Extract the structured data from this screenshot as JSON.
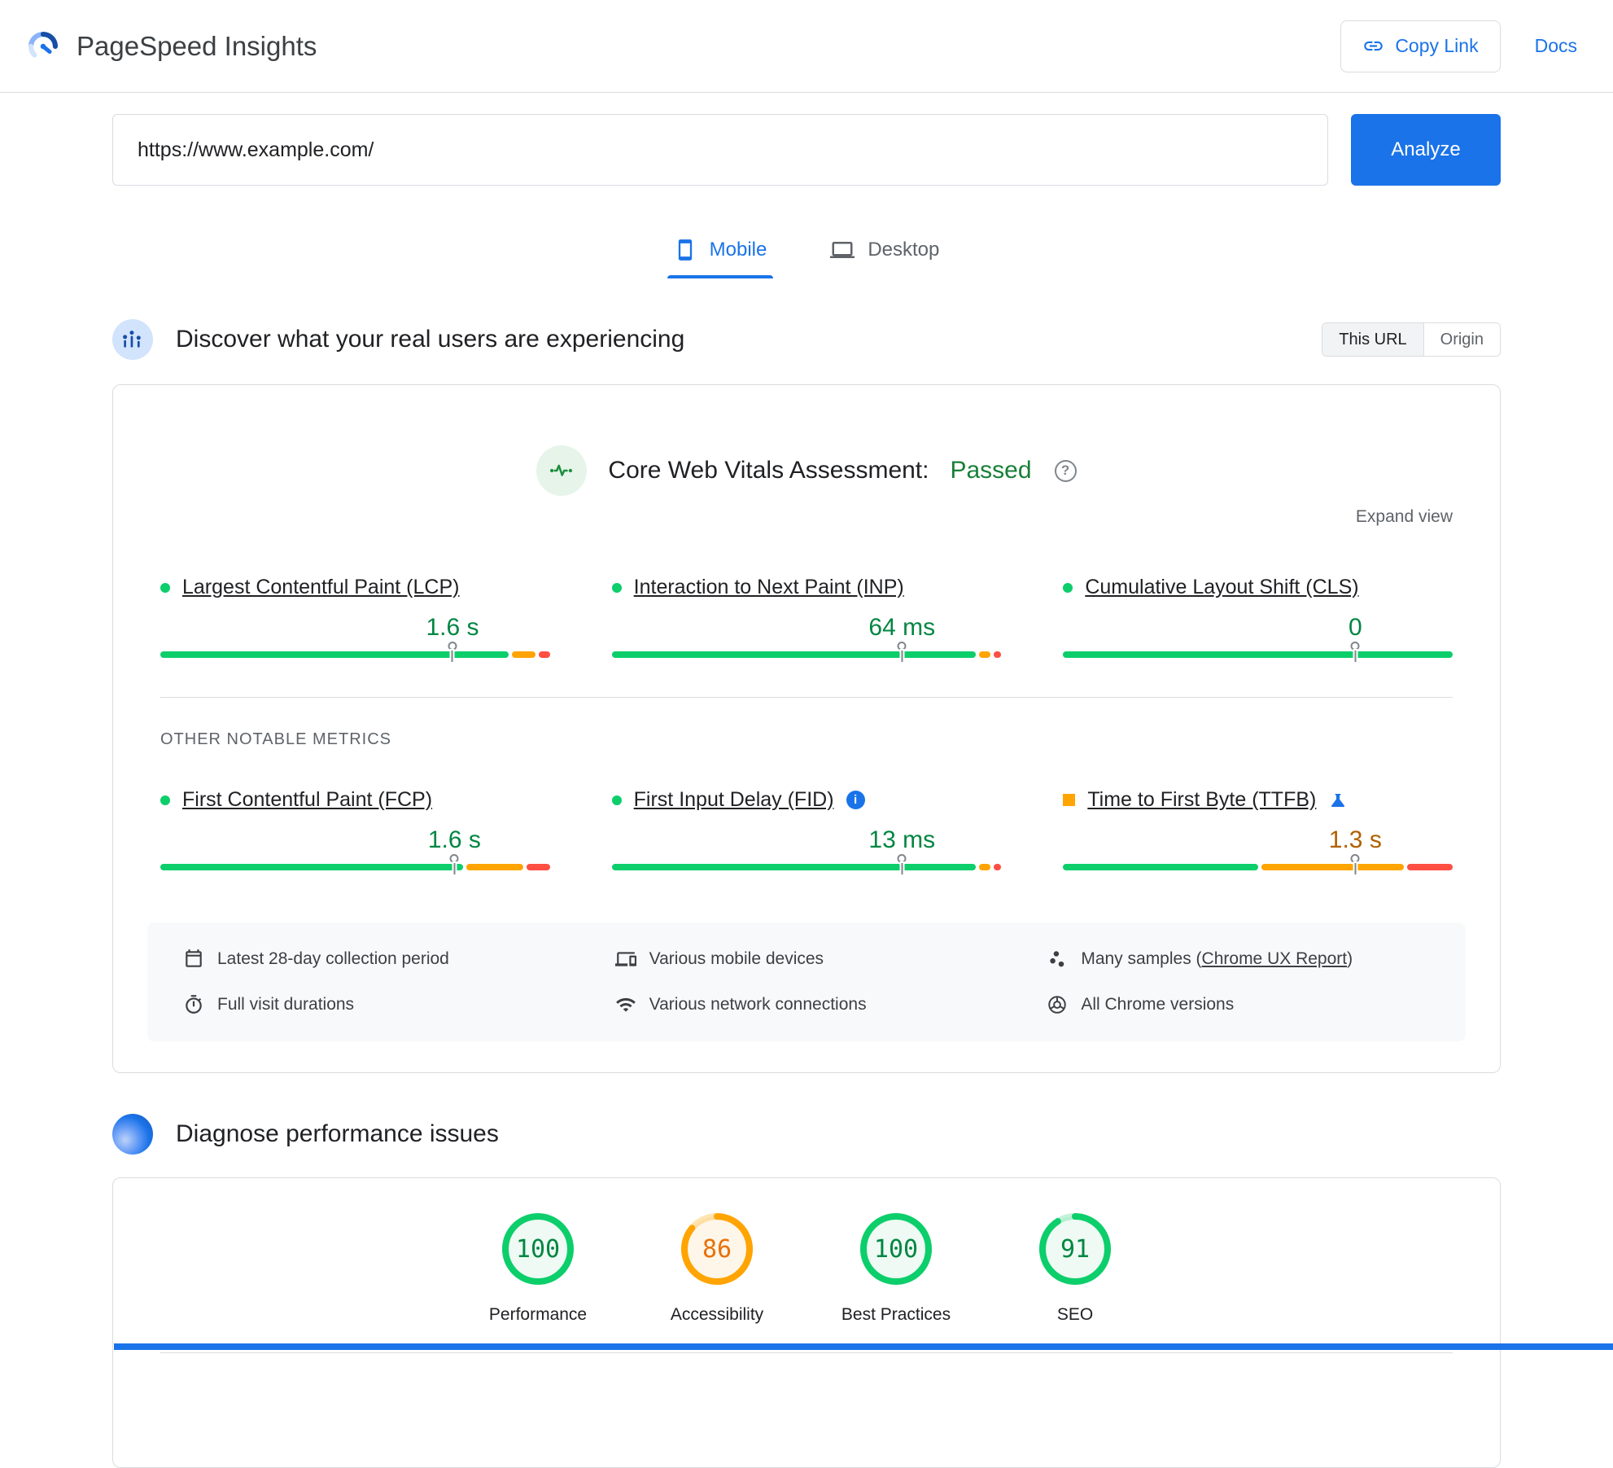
{
  "colors": {
    "blue": "#1a73e8",
    "good": "#0cce6b",
    "good_text": "#018642",
    "good_tint_bg": "#eefaf3",
    "average": "#ffa400",
    "average_text": "#b06000",
    "average_gauge_text": "#e8710a",
    "average_tint_bg": "#fdf6e9",
    "poor": "#ff4e42",
    "passed_green": "#188038"
  },
  "header": {
    "app_title": "PageSpeed Insights",
    "copy_link_label": "Copy Link",
    "docs_label": "Docs"
  },
  "search": {
    "url_value": "https://www.example.com/",
    "analyze_label": "Analyze"
  },
  "tabs": [
    {
      "label": "Mobile",
      "icon": "smartphone-icon",
      "active": true
    },
    {
      "label": "Desktop",
      "icon": "desktop-icon",
      "active": false
    }
  ],
  "field_section": {
    "title": "Discover what your real users are experiencing",
    "scope_toggle": [
      {
        "label": "This URL",
        "active": true
      },
      {
        "label": "Origin",
        "active": false
      }
    ],
    "assessment_label": "Core Web Vitals Assessment:",
    "assessment_value": "Passed",
    "expand_view_label": "Expand view",
    "core_metrics": [
      {
        "name": "Largest Contentful Paint (LCP)",
        "value": "1.6 s",
        "status": "good",
        "indicator": "circle",
        "marker": 75,
        "segments": [
          {
            "status": "good",
            "pct": 91
          },
          {
            "status": "average",
            "pct": 6
          },
          {
            "status": "poor",
            "pct": 3
          }
        ]
      },
      {
        "name": "Interaction to Next Paint (INP)",
        "value": "64 ms",
        "status": "good",
        "indicator": "circle",
        "marker": 74.5,
        "segments": [
          {
            "status": "good",
            "pct": 95
          },
          {
            "status": "average",
            "pct": 3
          },
          {
            "status": "poor",
            "pct": 2
          }
        ]
      },
      {
        "name": "Cumulative Layout Shift (CLS)",
        "value": "0",
        "status": "good",
        "indicator": "circle",
        "marker": 75,
        "segments": [
          {
            "status": "good",
            "pct": 100
          }
        ]
      }
    ],
    "other_metrics_title": "OTHER NOTABLE METRICS",
    "other_metrics": [
      {
        "name": "First Contentful Paint (FCP)",
        "value": "1.6 s",
        "status": "good",
        "indicator": "circle",
        "marker": 75.5,
        "segments": [
          {
            "status": "good",
            "pct": 79
          },
          {
            "status": "average",
            "pct": 15
          },
          {
            "status": "poor",
            "pct": 6
          }
        ]
      },
      {
        "name": "First Input Delay (FID)",
        "value": "13 ms",
        "status": "good",
        "indicator": "circle",
        "badge": "info",
        "marker": 74.5,
        "segments": [
          {
            "status": "good",
            "pct": 95
          },
          {
            "status": "average",
            "pct": 3
          },
          {
            "status": "poor",
            "pct": 2
          }
        ]
      },
      {
        "name": "Time to First Byte (TTFB)",
        "value": "1.3 s",
        "status": "average",
        "indicator": "square",
        "badge": "flask",
        "marker": 75,
        "segments": [
          {
            "status": "good",
            "pct": 51
          },
          {
            "status": "average",
            "pct": 37
          },
          {
            "status": "poor",
            "pct": 12
          }
        ]
      }
    ],
    "footnotes": [
      {
        "icon": "calendar-icon",
        "text": "Latest 28-day collection period"
      },
      {
        "icon": "timer-icon",
        "text": "Full visit durations"
      },
      {
        "icon": "devices-icon",
        "text": "Various mobile devices"
      },
      {
        "icon": "network-icon",
        "text": "Various network connections"
      },
      {
        "icon": "samples-icon",
        "text": "Many samples (",
        "link_text": "Chrome UX Report",
        "text_after": ")"
      },
      {
        "icon": "chrome-icon",
        "text": "All Chrome versions"
      }
    ]
  },
  "lab_section": {
    "title": "Diagnose performance issues",
    "scores": [
      {
        "label": "Performance",
        "value": 100,
        "status": "good"
      },
      {
        "label": "Accessibility",
        "value": 86,
        "status": "average"
      },
      {
        "label": "Best Practices",
        "value": 100,
        "status": "good"
      },
      {
        "label": "SEO",
        "value": 91,
        "status": "good"
      }
    ]
  }
}
